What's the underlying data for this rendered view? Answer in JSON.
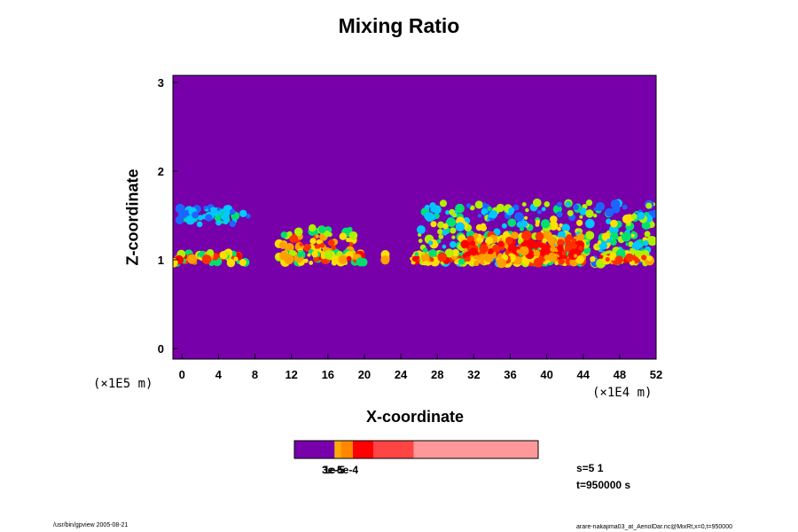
{
  "chart_data": {
    "type": "heatmap",
    "title": "Mixing Ratio",
    "xlabel": "X-coordinate",
    "ylabel": "Z-coordinate",
    "x_scale_text": "(×1E4 m)",
    "y_scale_text": "(×1E5 m)",
    "xlim": [
      -1,
      52
    ],
    "ylim": [
      -0.12,
      3.08
    ],
    "x_ticks": [
      "0",
      "4",
      "8",
      "12",
      "16",
      "20",
      "24",
      "28",
      "32",
      "36",
      "40",
      "44",
      "48",
      "52"
    ],
    "y_ticks": [
      "0",
      "1",
      "2",
      "3"
    ],
    "layers": [
      {
        "name": "lower-cloud-deck",
        "z_center": 1.02,
        "z_halfwidth": 0.06,
        "segments": [
          [
            -1,
            7
          ],
          [
            10.5,
            20
          ],
          [
            21.5,
            22.5
          ],
          [
            25,
            52
          ]
        ]
      },
      {
        "name": "mid-cloud-west",
        "z_center": 1.5,
        "z_halfwidth": 0.1,
        "segments": [
          [
            -1,
            7.5
          ]
        ]
      },
      {
        "name": "convective-tower",
        "z_center": 1.3,
        "z_halfwidth": 0.35,
        "segments": [
          [
            26,
            52
          ]
        ]
      },
      {
        "name": "cumulus-cells",
        "z_center": 1.18,
        "z_halfwidth": 0.18,
        "segments": [
          [
            10.5,
            19
          ]
        ]
      }
    ]
  },
  "colorbar": {
    "colors": [
      "#7700aa",
      "#ffaa00",
      "#ff8800",
      "#ff0000",
      "#ff4444",
      "#ff9999"
    ],
    "fractions": [
      0.165,
      0.025,
      0.05,
      0.085,
      0.165,
      0.51
    ],
    "labels_overlap": [
      "3e-5",
      "1e-5",
      "5e-4"
    ]
  },
  "info": {
    "s_text": "s=5 1",
    "t_text": "t=950000 s"
  },
  "footer": {
    "left": "/usr/bin/gpview 2005-08-21",
    "right": "arare-nakajima03_at_AeriolDar.nc@MixRt,x=0,t=950000"
  },
  "colors": {
    "background": "#7700aa"
  }
}
